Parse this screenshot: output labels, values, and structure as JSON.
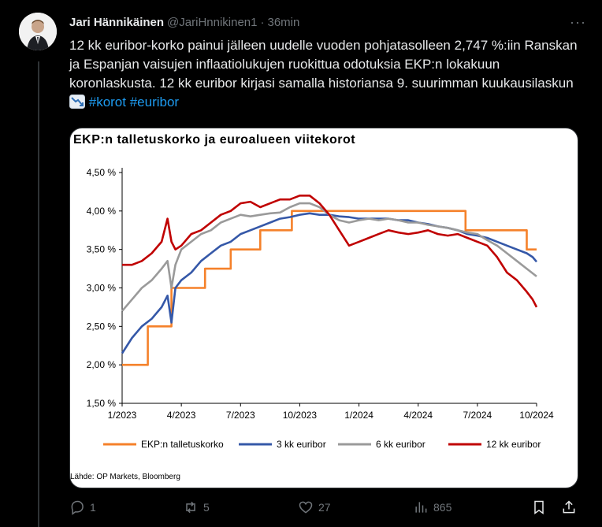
{
  "author": {
    "name": "Jari Hännikäinen",
    "handle": "@JariHnnikinen1",
    "separator": "·",
    "time": "36min"
  },
  "tweet": {
    "text": "12 kk euribor-korko painui jälleen uudelle vuoden pohjatasolleen 2,747 %:iin Ranskan ja Espanjan vaisujen inflaatiolukujen ruokittua odotuksia EKP:n lokakuun koronlaskusta. 12 kk euribor kirjasi samalla historiansa 9. suurimman kuukausilaskun",
    "emoji": "chart-decreasing-icon",
    "hashtags": [
      "#korot",
      "#euribor"
    ]
  },
  "card": {
    "title": "EKP:n talletuskorko ja euroalueen viitekorot",
    "source": "Lähde: OP Markets, Bloomberg"
  },
  "chart_data": {
    "type": "line",
    "title": "EKP:n talletuskorko ja euroalueen viitekorot",
    "x_ticks": [
      "1/2023",
      "4/2023",
      "7/2023",
      "10/2023",
      "1/2024",
      "4/2024",
      "7/2024",
      "10/2024"
    ],
    "y_ticks": [
      "4,50 %",
      "4,00 %",
      "3,50 %",
      "3,00 %",
      "2,50 %",
      "2,00 %",
      "1,50 %"
    ],
    "ylim": [
      1.5,
      4.5
    ],
    "xlim": [
      0,
      21
    ],
    "x_unit": "months since Jan 2023",
    "grid": false,
    "legend_position": "bottom",
    "series": [
      {
        "name": "EKP:n talletuskorko",
        "color": "#f5812a",
        "points": [
          [
            0,
            2.0
          ],
          [
            1.3,
            2.0
          ],
          [
            1.3,
            2.5
          ],
          [
            2.5,
            2.5
          ],
          [
            2.5,
            3.0
          ],
          [
            3.3,
            3.0
          ],
          [
            3.3,
            3.0
          ],
          [
            4.2,
            3.0
          ],
          [
            4.2,
            3.25
          ],
          [
            5.5,
            3.25
          ],
          [
            5.5,
            3.5
          ],
          [
            7.0,
            3.5
          ],
          [
            7.0,
            3.75
          ],
          [
            8.6,
            3.75
          ],
          [
            8.6,
            4.0
          ],
          [
            17.4,
            4.0
          ],
          [
            17.4,
            3.75
          ],
          [
            20.5,
            3.75
          ],
          [
            20.5,
            3.5
          ],
          [
            21.0,
            3.5
          ]
        ]
      },
      {
        "name": "3 kk euribor",
        "color": "#3558a8",
        "points": [
          [
            0,
            2.15
          ],
          [
            0.5,
            2.35
          ],
          [
            1.0,
            2.5
          ],
          [
            1.5,
            2.6
          ],
          [
            2.0,
            2.75
          ],
          [
            2.3,
            2.9
          ],
          [
            2.5,
            2.55
          ],
          [
            2.7,
            3.0
          ],
          [
            3.0,
            3.1
          ],
          [
            3.5,
            3.2
          ],
          [
            4.0,
            3.35
          ],
          [
            4.5,
            3.45
          ],
          [
            5.0,
            3.55
          ],
          [
            5.5,
            3.6
          ],
          [
            6.0,
            3.7
          ],
          [
            6.5,
            3.75
          ],
          [
            7.0,
            3.8
          ],
          [
            7.5,
            3.85
          ],
          [
            8.0,
            3.9
          ],
          [
            8.5,
            3.92
          ],
          [
            9.0,
            3.95
          ],
          [
            9.5,
            3.97
          ],
          [
            10.0,
            3.95
          ],
          [
            10.5,
            3.95
          ],
          [
            11.0,
            3.93
          ],
          [
            11.5,
            3.92
          ],
          [
            12.0,
            3.9
          ],
          [
            12.5,
            3.9
          ],
          [
            13.0,
            3.9
          ],
          [
            13.5,
            3.9
          ],
          [
            14.0,
            3.88
          ],
          [
            14.5,
            3.88
          ],
          [
            15.0,
            3.85
          ],
          [
            15.5,
            3.83
          ],
          [
            16.0,
            3.8
          ],
          [
            16.5,
            3.78
          ],
          [
            17.0,
            3.75
          ],
          [
            17.5,
            3.7
          ],
          [
            18.0,
            3.68
          ],
          [
            18.5,
            3.65
          ],
          [
            19.0,
            3.6
          ],
          [
            19.5,
            3.55
          ],
          [
            20.0,
            3.5
          ],
          [
            20.5,
            3.45
          ],
          [
            20.8,
            3.4
          ],
          [
            21.0,
            3.34
          ]
        ]
      },
      {
        "name": "6 kk euribor",
        "color": "#9a9a9a",
        "points": [
          [
            0,
            2.7
          ],
          [
            0.5,
            2.85
          ],
          [
            1.0,
            3.0
          ],
          [
            1.5,
            3.1
          ],
          [
            2.0,
            3.25
          ],
          [
            2.3,
            3.35
          ],
          [
            2.5,
            3.0
          ],
          [
            2.7,
            3.3
          ],
          [
            3.0,
            3.5
          ],
          [
            3.5,
            3.6
          ],
          [
            4.0,
            3.7
          ],
          [
            4.5,
            3.75
          ],
          [
            5.0,
            3.85
          ],
          [
            5.5,
            3.9
          ],
          [
            6.0,
            3.95
          ],
          [
            6.5,
            3.93
          ],
          [
            7.0,
            3.95
          ],
          [
            7.5,
            3.97
          ],
          [
            8.0,
            3.98
          ],
          [
            8.5,
            4.05
          ],
          [
            9.0,
            4.1
          ],
          [
            9.5,
            4.1
          ],
          [
            10.0,
            4.05
          ],
          [
            10.5,
            3.95
          ],
          [
            11.0,
            3.88
          ],
          [
            11.5,
            3.85
          ],
          [
            12.0,
            3.88
          ],
          [
            12.5,
            3.9
          ],
          [
            13.0,
            3.88
          ],
          [
            13.5,
            3.9
          ],
          [
            14.0,
            3.88
          ],
          [
            14.5,
            3.85
          ],
          [
            15.0,
            3.85
          ],
          [
            15.5,
            3.82
          ],
          [
            16.0,
            3.8
          ],
          [
            16.5,
            3.78
          ],
          [
            17.0,
            3.75
          ],
          [
            17.5,
            3.72
          ],
          [
            18.0,
            3.7
          ],
          [
            18.5,
            3.62
          ],
          [
            19.0,
            3.55
          ],
          [
            19.5,
            3.45
          ],
          [
            20.0,
            3.35
          ],
          [
            20.5,
            3.25
          ],
          [
            21.0,
            3.15
          ]
        ]
      },
      {
        "name": "12 kk euribor",
        "color": "#c00000",
        "points": [
          [
            0,
            3.3
          ],
          [
            0.5,
            3.3
          ],
          [
            1.0,
            3.35
          ],
          [
            1.5,
            3.45
          ],
          [
            2.0,
            3.6
          ],
          [
            2.3,
            3.9
          ],
          [
            2.5,
            3.6
          ],
          [
            2.7,
            3.5
          ],
          [
            3.0,
            3.55
          ],
          [
            3.5,
            3.7
          ],
          [
            4.0,
            3.75
          ],
          [
            4.5,
            3.85
          ],
          [
            5.0,
            3.95
          ],
          [
            5.5,
            4.0
          ],
          [
            6.0,
            4.1
          ],
          [
            6.5,
            4.12
          ],
          [
            7.0,
            4.05
          ],
          [
            7.5,
            4.1
          ],
          [
            8.0,
            4.15
          ],
          [
            8.5,
            4.15
          ],
          [
            9.0,
            4.2
          ],
          [
            9.5,
            4.2
          ],
          [
            10.0,
            4.1
          ],
          [
            10.5,
            3.95
          ],
          [
            11.0,
            3.75
          ],
          [
            11.5,
            3.55
          ],
          [
            12.0,
            3.6
          ],
          [
            12.5,
            3.65
          ],
          [
            13.0,
            3.7
          ],
          [
            13.5,
            3.75
          ],
          [
            14.0,
            3.72
          ],
          [
            14.5,
            3.7
          ],
          [
            15.0,
            3.72
          ],
          [
            15.5,
            3.75
          ],
          [
            16.0,
            3.7
          ],
          [
            16.5,
            3.68
          ],
          [
            17.0,
            3.7
          ],
          [
            17.5,
            3.65
          ],
          [
            18.0,
            3.6
          ],
          [
            18.5,
            3.55
          ],
          [
            19.0,
            3.4
          ],
          [
            19.5,
            3.2
          ],
          [
            20.0,
            3.1
          ],
          [
            20.5,
            2.95
          ],
          [
            20.8,
            2.85
          ],
          [
            21.0,
            2.75
          ]
        ]
      }
    ]
  },
  "actions": {
    "replies": "1",
    "reposts": "5",
    "likes": "27",
    "views": "865"
  },
  "colors": {
    "link": "#1d9bf0",
    "muted": "#71767b",
    "background": "#000000"
  }
}
